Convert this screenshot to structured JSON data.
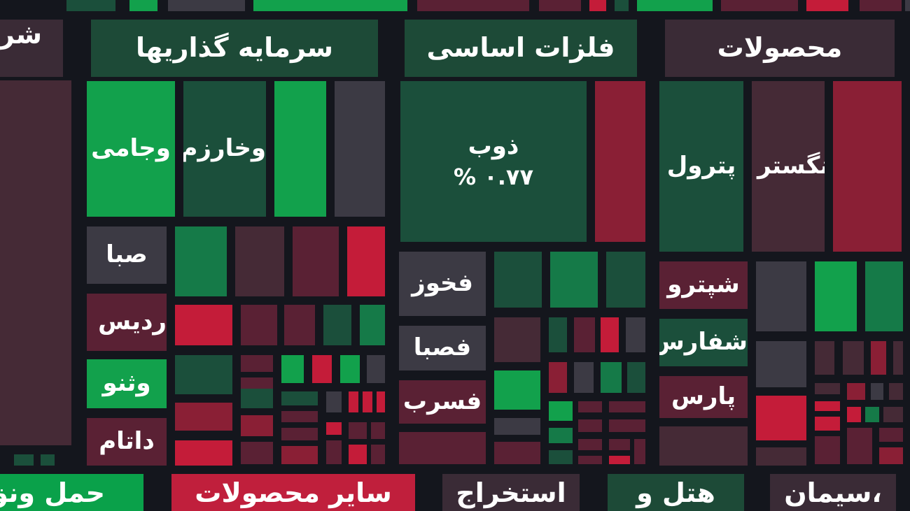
{
  "colors": {
    "background": "#14161d",
    "header": "#3a2b36",
    "header_green": "#0aa14a",
    "header_red": "#c01f3c",
    "header_dgreen": "#1d4a37",
    "dark_green": "#1b4f3b",
    "bright_green": "#12a14c",
    "mid_green": "#157a48",
    "dark_red": "#5a2134",
    "bright_red": "#c41c39",
    "mid_red": "#8a1f35",
    "neutral": "#3c3a44",
    "dark_maroon": "#452a36"
  },
  "chart_data": {
    "type": "heatmap",
    "sectors": [
      {
        "name": "شرکت",
        "color": "header"
      },
      {
        "name": "سرمایه گذاریها",
        "color": "header_dgreen"
      },
      {
        "name": "فلزات اساسی",
        "color": "header_dgreen"
      },
      {
        "name": "محصولات",
        "color": "header"
      },
      {
        "name": "حمل ونق",
        "color": "header_green"
      },
      {
        "name": "سایر محصولات",
        "color": "header_red"
      },
      {
        "name": "استخراج",
        "color": "header"
      },
      {
        "name": "هتل و",
        "color": "header_dgreen"
      },
      {
        "name": "سیمان،",
        "color": "header"
      }
    ],
    "stocks": [
      {
        "symbol": "وجامی",
        "color": "bright_green"
      },
      {
        "symbol": "وخارزم",
        "color": "dark_green"
      },
      {
        "symbol": "ذوب",
        "change": "% ۰.۷۷",
        "color": "dark_green"
      },
      {
        "symbol": "پترول",
        "color": "dark_green"
      },
      {
        "symbol": "نگستر",
        "color": "dark_maroon"
      },
      {
        "symbol": "صبا",
        "color": "neutral"
      },
      {
        "symbol": "ردیس",
        "color": "dark_red"
      },
      {
        "symbol": "وثنو",
        "color": "bright_green"
      },
      {
        "symbol": "داتام",
        "color": "dark_red"
      },
      {
        "symbol": "فخوز",
        "color": "neutral"
      },
      {
        "symbol": "فصبا",
        "color": "neutral"
      },
      {
        "symbol": "فسرب",
        "color": "dark_red"
      },
      {
        "symbol": "شپترو",
        "color": "dark_red"
      },
      {
        "symbol": "شفارس",
        "color": "dark_green"
      },
      {
        "symbol": "پارس",
        "color": "dark_red"
      }
    ]
  }
}
